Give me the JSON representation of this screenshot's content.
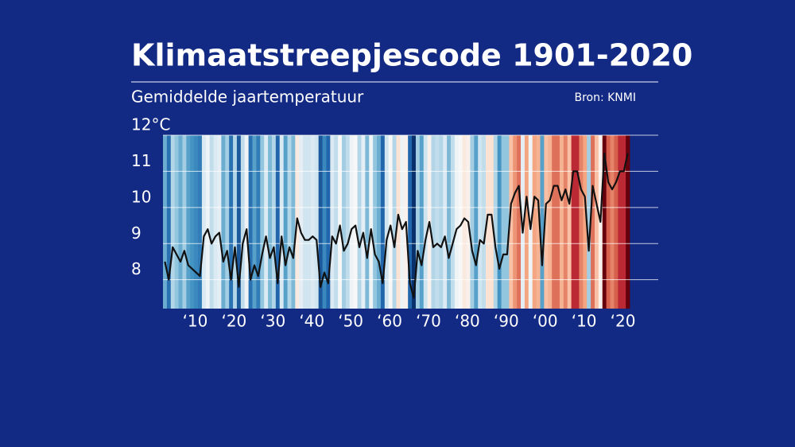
{
  "chart_data": {
    "type": "line",
    "title": "Klimaatstreepjescode 1901-2020",
    "subtitle": "Gemiddelde jaartemperatuur",
    "source": "Bron: KNMI",
    "color": "#111111",
    "x": [
      1901,
      1902,
      1903,
      1904,
      1905,
      1906,
      1907,
      1908,
      1909,
      1910,
      1911,
      1912,
      1913,
      1914,
      1915,
      1916,
      1917,
      1918,
      1919,
      1920,
      1921,
      1922,
      1923,
      1924,
      1925,
      1926,
      1927,
      1928,
      1929,
      1930,
      1931,
      1932,
      1933,
      1934,
      1935,
      1936,
      1937,
      1938,
      1939,
      1940,
      1941,
      1942,
      1943,
      1944,
      1945,
      1946,
      1947,
      1948,
      1949,
      1950,
      1951,
      1952,
      1953,
      1954,
      1955,
      1956,
      1957,
      1958,
      1959,
      1960,
      1961,
      1962,
      1963,
      1964,
      1965,
      1966,
      1967,
      1968,
      1969,
      1970,
      1971,
      1972,
      1973,
      1974,
      1975,
      1976,
      1977,
      1978,
      1979,
      1980,
      1981,
      1982,
      1983,
      1984,
      1985,
      1986,
      1987,
      1988,
      1989,
      1990,
      1991,
      1992,
      1993,
      1994,
      1995,
      1996,
      1997,
      1998,
      1999,
      2000,
      2001,
      2002,
      2003,
      2004,
      2005,
      2006,
      2007,
      2008,
      2009,
      2010,
      2011,
      2012,
      2013,
      2014,
      2015,
      2016,
      2017,
      2018,
      2019,
      2020
    ],
    "values": [
      8.5,
      8.0,
      8.9,
      8.7,
      8.5,
      8.8,
      8.4,
      8.3,
      8.2,
      8.1,
      9.2,
      9.4,
      9.0,
      9.2,
      9.3,
      8.5,
      8.8,
      8.0,
      8.9,
      7.8,
      9.0,
      9.4,
      8.0,
      8.4,
      8.1,
      8.7,
      9.2,
      8.6,
      8.9,
      7.9,
      9.2,
      8.4,
      8.9,
      8.6,
      9.7,
      9.3,
      9.1,
      9.1,
      9.2,
      9.1,
      7.8,
      8.2,
      7.9,
      9.2,
      9.0,
      9.5,
      8.8,
      9.0,
      9.4,
      9.5,
      8.9,
      9.3,
      8.6,
      9.4,
      8.7,
      8.5,
      7.9,
      9.1,
      9.5,
      8.9,
      9.8,
      9.4,
      9.6,
      7.9,
      7.5,
      8.8,
      8.4,
      9.1,
      9.6,
      8.9,
      9.0,
      8.9,
      9.2,
      8.6,
      9.0,
      9.4,
      9.5,
      9.7,
      9.6,
      8.8,
      8.4,
      9.1,
      9.0,
      9.8,
      9.8,
      8.9,
      8.3,
      8.7,
      8.7,
      10.1,
      10.4,
      10.6,
      9.3,
      10.3,
      9.4,
      10.3,
      10.2,
      8.4,
      10.1,
      10.2,
      10.6,
      10.6,
      10.2,
      10.5,
      10.1,
      11.0,
      11.0,
      10.5,
      10.3,
      8.8,
      10.6,
      10.1,
      9.6,
      11.5,
      10.7,
      10.5,
      10.7,
      11.0,
      11.0,
      11.5
    ],
    "xlim": [
      1900.5,
      2020.5
    ],
    "xticks": [
      {
        "value": 1910,
        "label": "‘10"
      },
      {
        "value": 1920,
        "label": "‘20"
      },
      {
        "value": 1930,
        "label": "‘30"
      },
      {
        "value": 1940,
        "label": "‘40"
      },
      {
        "value": 1950,
        "label": "‘50"
      },
      {
        "value": 1960,
        "label": "‘60"
      },
      {
        "value": 1970,
        "label": "‘70"
      },
      {
        "value": 1980,
        "label": "‘80"
      },
      {
        "value": 1990,
        "label": "‘90"
      },
      {
        "value": 2000,
        "label": "‘00"
      },
      {
        "value": 2010,
        "label": "‘10"
      },
      {
        "value": 2020,
        "label": "‘20"
      }
    ],
    "ylim": [
      7.2,
      12
    ],
    "yticks": [
      8,
      9,
      10,
      11,
      {
        "value": 12,
        "label": "12°C"
      }
    ],
    "grid": true
  }
}
